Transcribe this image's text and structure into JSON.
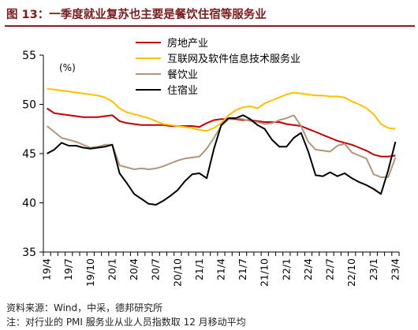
{
  "figure": {
    "title": "图 13：一季度就业复苏也主要是餐饮住宿等服务业",
    "source": "资料来源：Wind，中采，德邦研究所",
    "note": "注：对行业的 PMI 服务业从业人员指数取 12 月移动平均"
  },
  "colors": {
    "title": "#7a1a1a",
    "rule": "#8b1d1d"
  },
  "chart_data": {
    "type": "line",
    "ylabel": "(%)",
    "ylim": [
      35,
      55
    ],
    "yticks": [
      35,
      40,
      45,
      50,
      55
    ],
    "grid": false,
    "legend_position": "top-right",
    "x": [
      "19/4",
      "19/5",
      "19/6",
      "19/7",
      "19/8",
      "19/9",
      "19/10",
      "19/11",
      "19/12",
      "20/1",
      "20/2",
      "20/3",
      "20/4",
      "20/5",
      "20/6",
      "20/7",
      "20/8",
      "20/9",
      "20/10",
      "20/11",
      "20/12",
      "21/1",
      "21/2",
      "21/3",
      "21/4",
      "21/5",
      "21/6",
      "21/7",
      "21/8",
      "21/9",
      "21/10",
      "21/11",
      "21/12",
      "22/1",
      "22/2",
      "22/3",
      "22/4",
      "22/5",
      "22/6",
      "22/7",
      "22/8",
      "22/9",
      "22/10",
      "22/11",
      "22/12",
      "23/1",
      "23/2",
      "23/3",
      "23/4"
    ],
    "xtick_labels": [
      "19/4",
      "19/7",
      "19/10",
      "20/1",
      "20/4",
      "20/7",
      "20/10",
      "21/1",
      "21/4",
      "21/7",
      "21/10",
      "22/1",
      "22/4",
      "22/7",
      "22/10",
      "23/1",
      "23/4"
    ],
    "series": [
      {
        "name": "房地产业",
        "color": "#c00000",
        "values": [
          49.6,
          49.1,
          49.0,
          48.9,
          48.8,
          48.7,
          48.7,
          48.7,
          48.8,
          48.9,
          48.3,
          48.1,
          48.0,
          47.9,
          47.9,
          47.9,
          47.9,
          47.8,
          47.8,
          47.8,
          47.8,
          47.7,
          48.1,
          48.4,
          48.5,
          48.5,
          48.5,
          48.4,
          48.4,
          48.3,
          48.2,
          48.2,
          48.2,
          48.0,
          47.9,
          47.8,
          47.5,
          47.2,
          46.9,
          46.6,
          46.3,
          46.1,
          45.9,
          45.6,
          45.3,
          44.9,
          44.7,
          44.7,
          44.8
        ]
      },
      {
        "name": "互联网及软件信息技术服务业",
        "color": "#ffc000",
        "values": [
          51.6,
          51.5,
          51.4,
          51.3,
          51.2,
          51.1,
          51.0,
          50.9,
          50.7,
          50.3,
          49.6,
          49.2,
          49.0,
          48.8,
          48.6,
          48.3,
          48.0,
          47.9,
          47.8,
          47.7,
          47.6,
          47.4,
          47.3,
          47.6,
          48.1,
          48.9,
          49.4,
          49.7,
          49.8,
          49.6,
          50.1,
          50.4,
          50.7,
          51.0,
          51.2,
          51.1,
          51.0,
          50.9,
          50.9,
          50.8,
          50.8,
          50.7,
          50.3,
          50.0,
          49.6,
          49.0,
          48.0,
          47.6,
          47.5
        ]
      },
      {
        "name": "餐饮业",
        "color": "#b1967a",
        "values": [
          47.8,
          47.2,
          46.6,
          46.4,
          46.2,
          45.9,
          45.6,
          45.7,
          45.9,
          45.9,
          43.8,
          43.6,
          43.4,
          43.5,
          43.4,
          43.5,
          43.7,
          44.0,
          44.3,
          44.5,
          44.6,
          44.7,
          45.5,
          46.6,
          47.8,
          48.5,
          48.6,
          48.5,
          48.3,
          48.2,
          48.0,
          48.1,
          48.4,
          48.6,
          48.9,
          47.8,
          46.2,
          45.4,
          45.3,
          45.2,
          45.8,
          46.0,
          45.1,
          44.8,
          44.5,
          42.9,
          42.6,
          42.6,
          44.6
        ]
      },
      {
        "name": "住宿业",
        "color": "#000000",
        "values": [
          45.0,
          45.4,
          46.1,
          45.8,
          45.8,
          45.6,
          45.5,
          45.6,
          45.7,
          45.9,
          43.0,
          42.0,
          40.9,
          40.4,
          39.9,
          39.8,
          40.2,
          40.7,
          41.3,
          42.2,
          42.9,
          43.0,
          42.5,
          45.5,
          47.9,
          48.6,
          48.6,
          48.9,
          48.5,
          47.9,
          47.5,
          46.4,
          45.7,
          45.7,
          46.6,
          47.1,
          45.2,
          42.8,
          42.7,
          43.1,
          42.7,
          43.0,
          42.5,
          42.1,
          41.8,
          41.4,
          40.9,
          43.3,
          46.2
        ]
      }
    ]
  }
}
